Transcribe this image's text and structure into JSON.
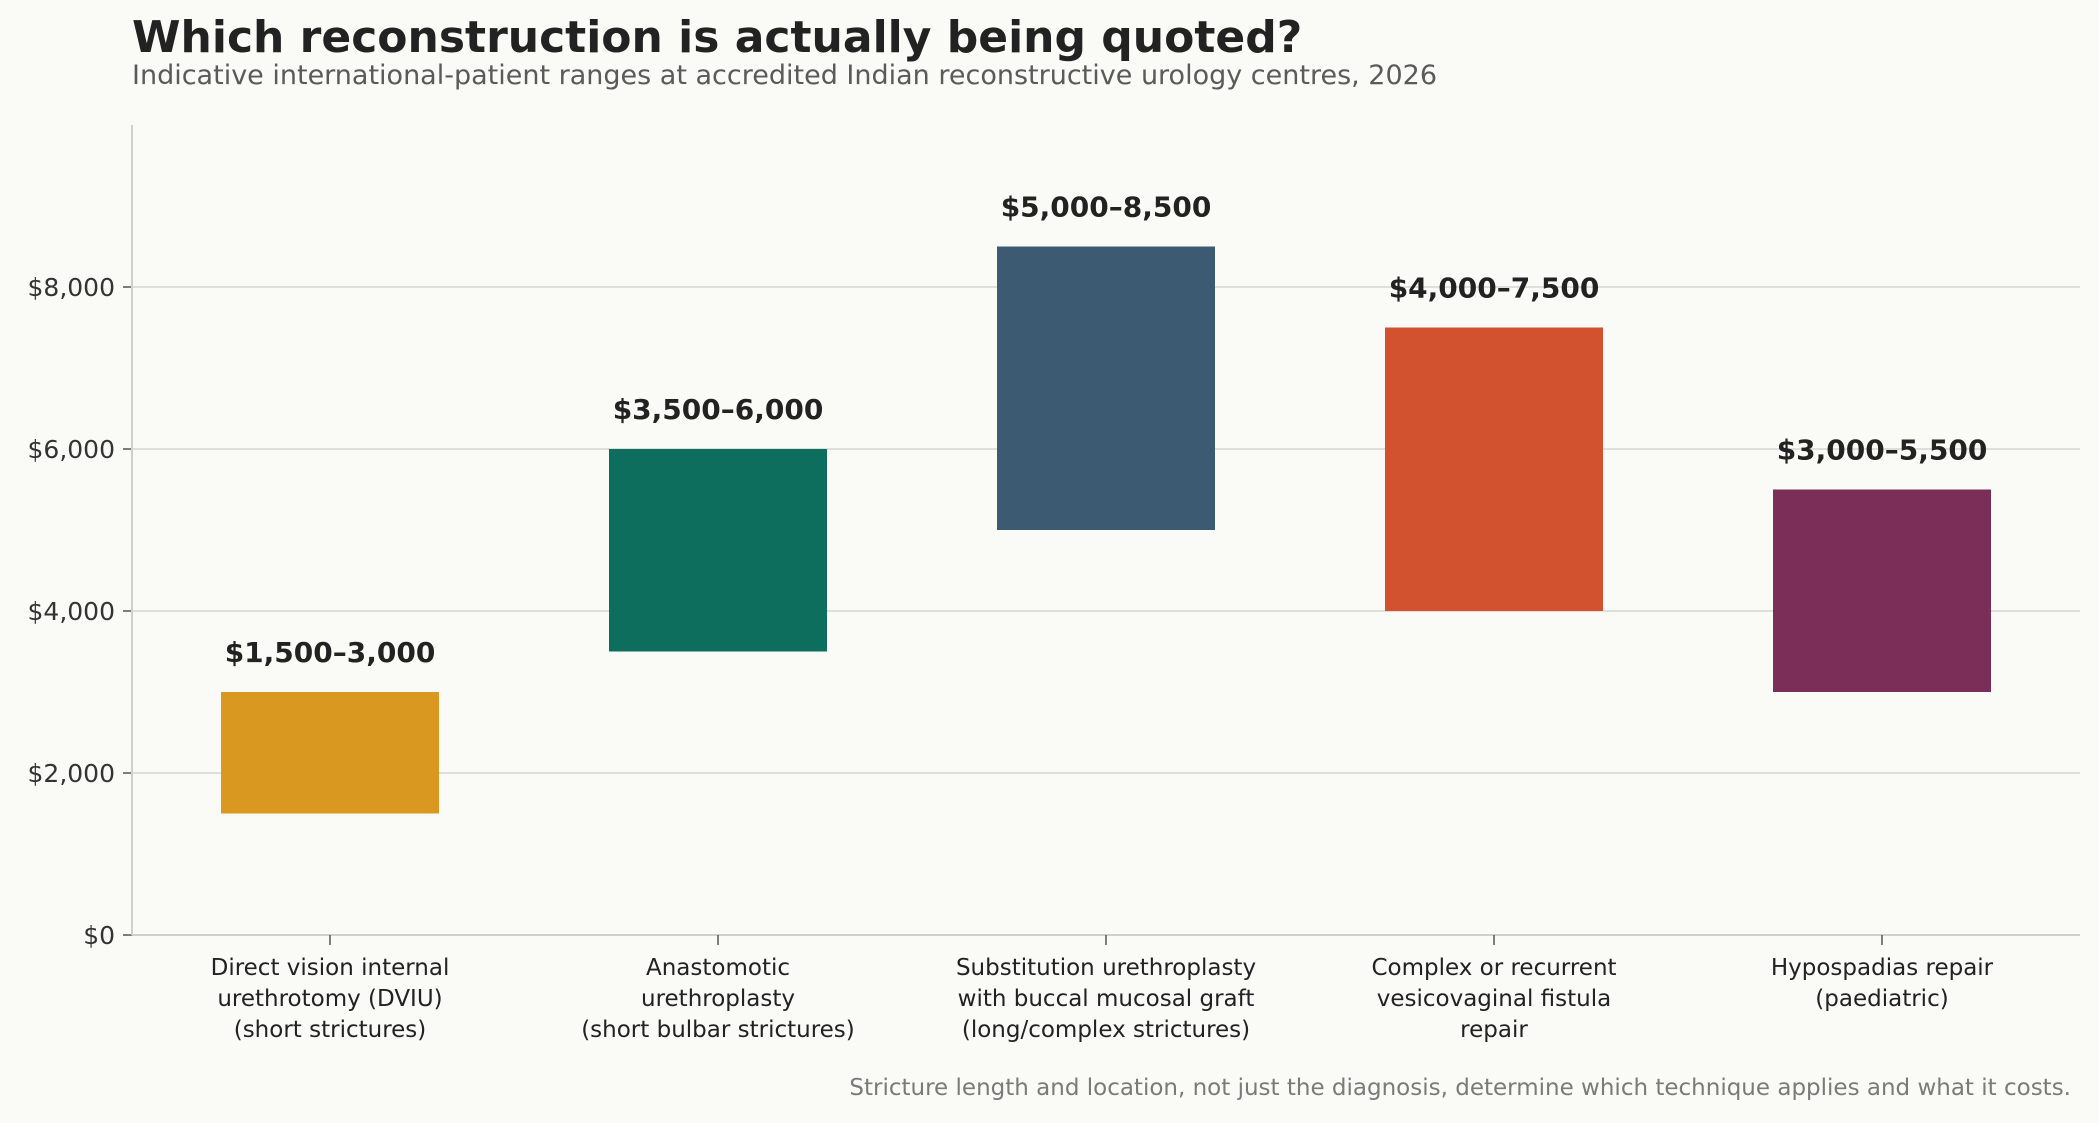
{
  "title": "Which reconstruction is actually being quoted?",
  "subtitle": "Indicative international-patient ranges at accredited Indian reconstructive urology centres, 2026",
  "footnote": "Stricture length and location, not just the diagnosis, determine which technique applies and what it costs.",
  "chart_data": {
    "type": "bar",
    "title": "Which reconstruction is actually being quoted?",
    "subtitle": "Indicative international-patient ranges at accredited Indian reconstructive urology centres, 2026",
    "xlabel": "",
    "ylabel": "",
    "ylim": [
      0,
      10000
    ],
    "yticks": [
      0,
      2000,
      4000,
      6000,
      8000
    ],
    "ytick_labels": [
      "$0",
      "$2,000",
      "$4,000",
      "$6,000",
      "$8,000"
    ],
    "grid": "horizontal",
    "categories": [
      [
        "Direct vision internal",
        "urethrotomy (DVIU)",
        "(short strictures)"
      ],
      [
        "Anastomotic",
        "urethroplasty",
        "(short bulbar strictures)"
      ],
      [
        "Substitution urethroplasty",
        "with buccal mucosal graft",
        "(long/complex strictures)"
      ],
      [
        "Complex or recurrent",
        "vesicovaginal fistula",
        "repair"
      ],
      [
        "Hypospadias repair",
        "(paediatric)"
      ]
    ],
    "ranges": [
      {
        "low": 1500,
        "high": 3000,
        "label": "$1,500–3,000",
        "color": "#d9981f"
      },
      {
        "low": 3500,
        "high": 6000,
        "label": "$3,500–6,000",
        "color": "#0e6e5e"
      },
      {
        "low": 5000,
        "high": 8500,
        "label": "$5,000–8,500",
        "color": "#3c5a72"
      },
      {
        "low": 4000,
        "high": 7500,
        "label": "$4,000–7,500",
        "color": "#d2512f"
      },
      {
        "low": 3000,
        "high": 5500,
        "label": "$3,000–5,500",
        "color": "#7a2e58"
      }
    ]
  }
}
